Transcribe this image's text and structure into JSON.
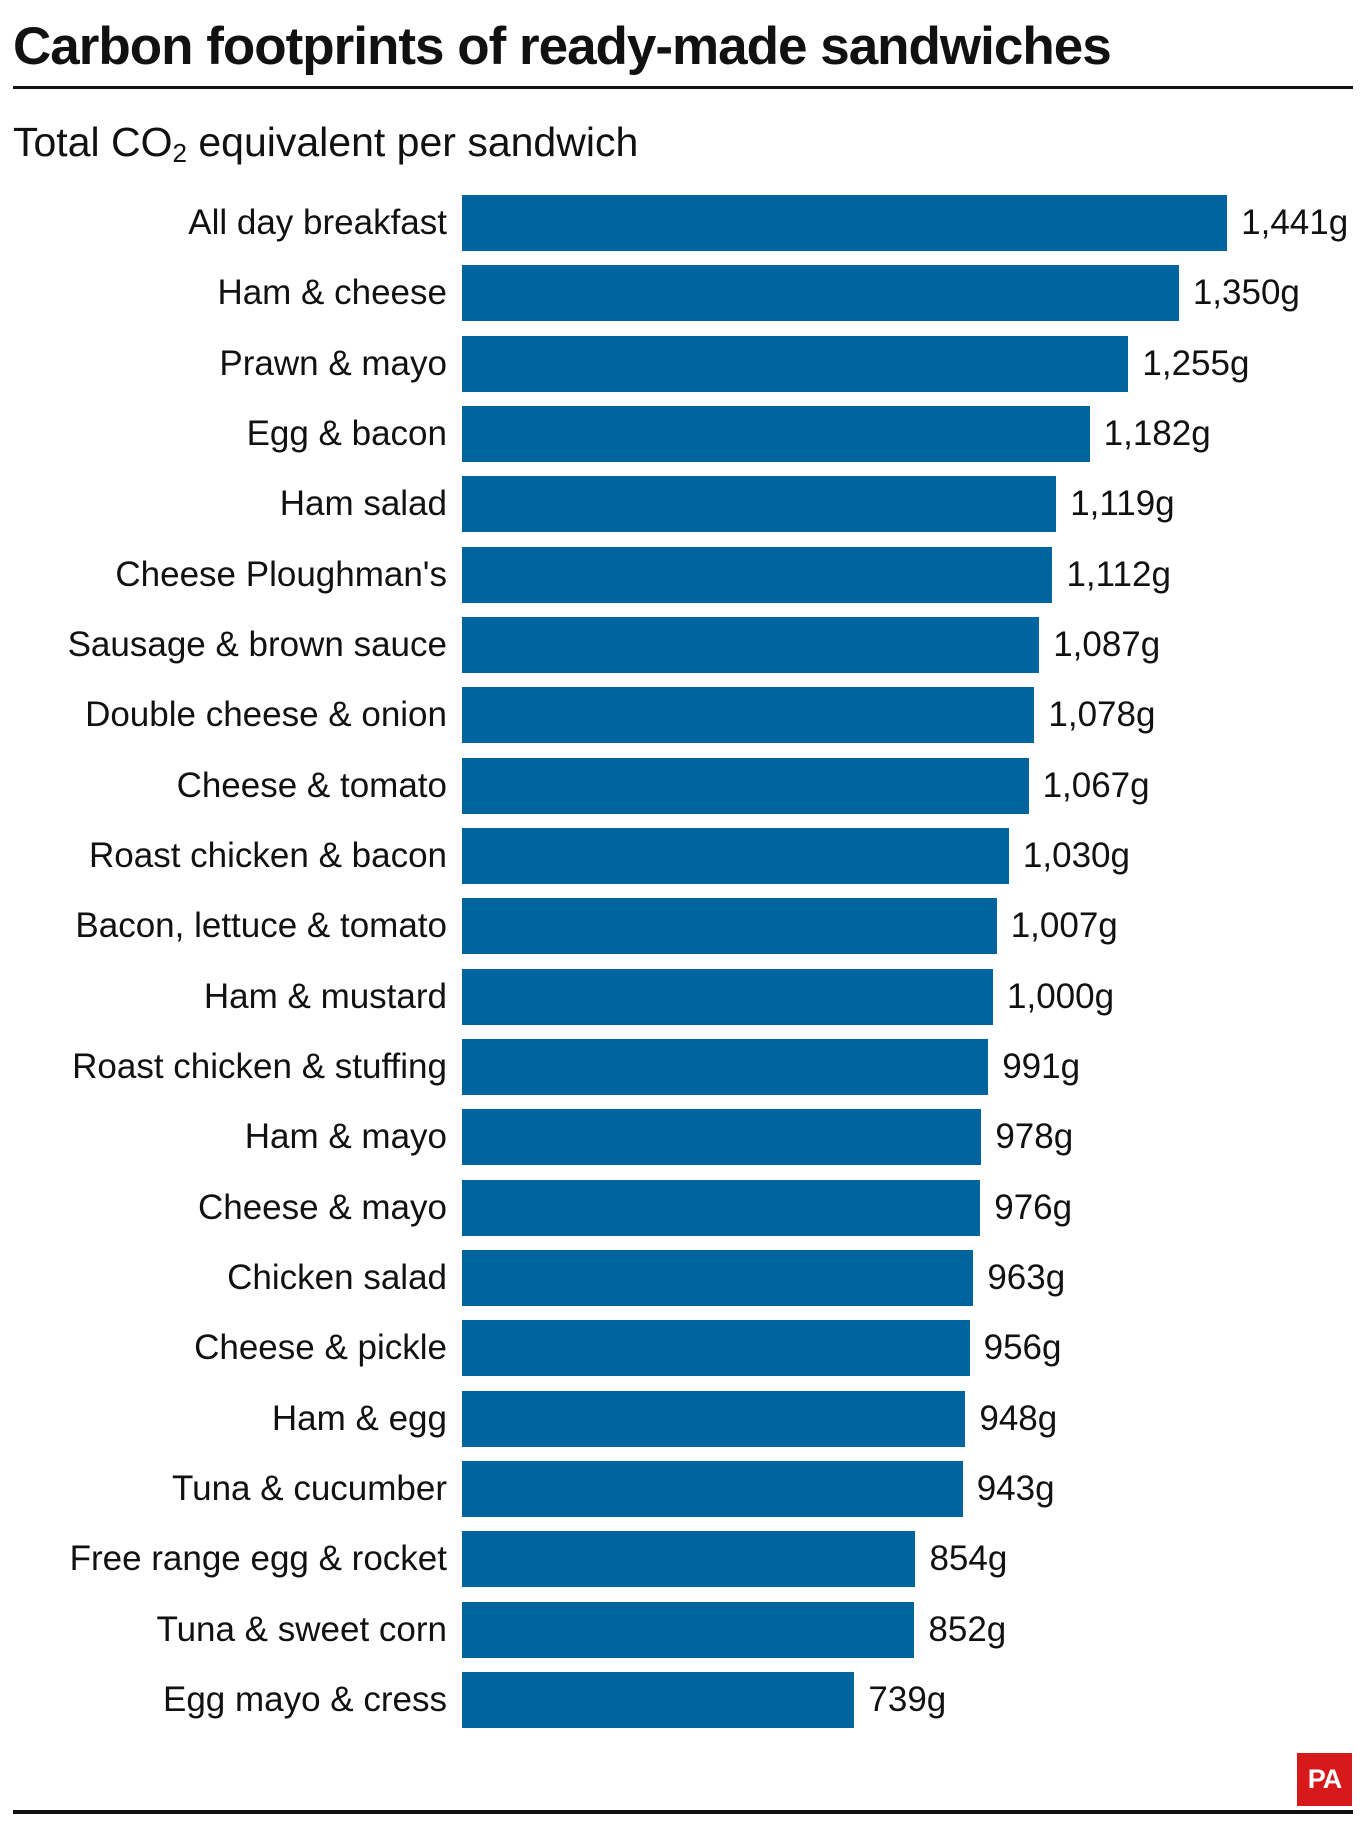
{
  "header": {
    "title": "Carbon footprints of ready-made sandwiches",
    "subtitle_prefix": "Total CO",
    "subtitle_sub": "2",
    "subtitle_suffix": " equivalent per sandwich"
  },
  "footer": {
    "logo_text": "PA",
    "logo_color": "#D7191C"
  },
  "style": {
    "bar_color": "#00649F",
    "text_color": "#111111"
  },
  "chart_data": {
    "type": "bar",
    "orientation": "horizontal",
    "title": "Carbon footprints of ready-made sandwiches",
    "subtitle": "Total CO2 equivalent per sandwich",
    "xlabel": "",
    "ylabel": "",
    "unit": "g",
    "grid": false,
    "legend": null,
    "categories": [
      "All day breakfast",
      "Ham & cheese",
      "Prawn & mayo",
      "Egg & bacon",
      "Ham salad",
      "Cheese Ploughman's",
      "Sausage & brown sauce",
      "Double cheese & onion",
      "Cheese & tomato",
      "Roast chicken & bacon",
      "Bacon, lettuce & tomato",
      "Ham & mustard",
      "Roast chicken & stuffing",
      "Ham & mayo",
      "Cheese & mayo",
      "Chicken salad",
      "Cheese & pickle",
      "Ham & egg",
      "Tuna & cucumber",
      "Free range egg & rocket",
      "Tuna & sweet corn",
      "Egg mayo & cress"
    ],
    "values": [
      1441,
      1350,
      1255,
      1182,
      1119,
      1112,
      1087,
      1078,
      1067,
      1030,
      1007,
      1000,
      991,
      978,
      976,
      963,
      956,
      948,
      943,
      854,
      852,
      739
    ],
    "value_labels": [
      "1,441g",
      "1,350g",
      "1,255g",
      "1,182g",
      "1,119g",
      "1,112g",
      "1,087g",
      "1,078g",
      "1,067g",
      "1,030g",
      "1,007g",
      "1,000g",
      "991g",
      "978g",
      "976g",
      "963g",
      "956g",
      "948g",
      "943g",
      "854g",
      "852g",
      "739g"
    ],
    "xlim": [
      0,
      1441
    ]
  }
}
